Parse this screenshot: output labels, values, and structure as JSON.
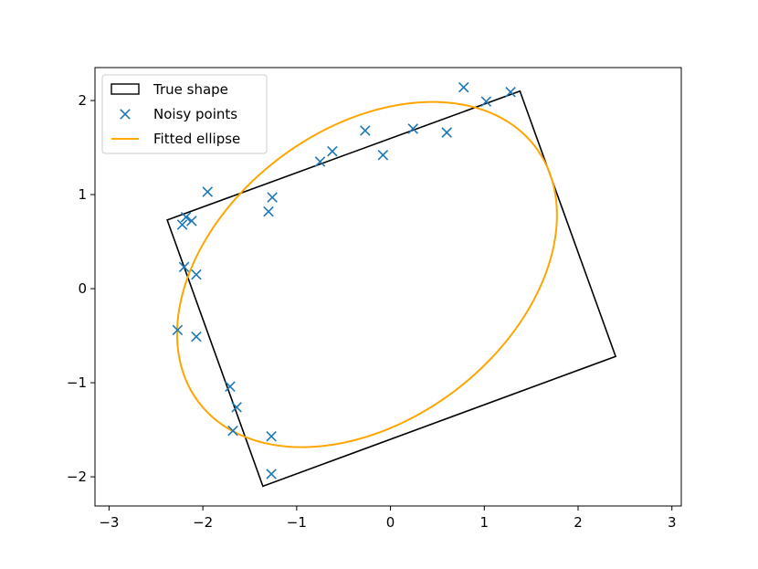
{
  "chart_data": {
    "type": "scatter",
    "title": "",
    "xlabel": "",
    "ylabel": "",
    "xlim": [
      -3.15,
      3.1
    ],
    "ylim": [
      -2.31,
      2.35
    ],
    "grid": false,
    "legend_placement": "top-left",
    "x_ticks": [
      -3,
      -2,
      -1,
      0,
      1,
      2,
      3
    ],
    "y_ticks": [
      -2,
      -1,
      0,
      1,
      2
    ],
    "x_tick_labels": [
      "−3",
      "−2",
      "−1",
      "0",
      "1",
      "2",
      "3"
    ],
    "y_tick_labels": [
      "−2",
      "−1",
      "0",
      "1",
      "2"
    ],
    "series": [
      {
        "name": "True shape",
        "type": "polygon",
        "color": "#000000",
        "points": [
          [
            -2.38,
            0.73
          ],
          [
            1.38,
            2.1
          ],
          [
            2.4,
            -0.72
          ],
          [
            -1.36,
            -2.1
          ]
        ]
      },
      {
        "name": "Noisy points",
        "type": "scatter",
        "marker": "x",
        "color": "#1f77b4",
        "points": [
          [
            0.78,
            2.14
          ],
          [
            1.02,
            1.99
          ],
          [
            1.28,
            2.09
          ],
          [
            -0.27,
            1.68
          ],
          [
            0.24,
            1.7
          ],
          [
            0.6,
            1.66
          ],
          [
            -0.62,
            1.46
          ],
          [
            -0.75,
            1.35
          ],
          [
            -0.08,
            1.42
          ],
          [
            -1.95,
            1.03
          ],
          [
            -1.26,
            0.97
          ],
          [
            -1.3,
            0.82
          ],
          [
            -2.18,
            0.76
          ],
          [
            -2.22,
            0.68
          ],
          [
            -2.12,
            0.72
          ],
          [
            -2.2,
            0.23
          ],
          [
            -2.07,
            0.15
          ],
          [
            -2.27,
            -0.44
          ],
          [
            -2.07,
            -0.51
          ],
          [
            -1.71,
            -1.04
          ],
          [
            -1.64,
            -1.26
          ],
          [
            -1.68,
            -1.51
          ],
          [
            -1.27,
            -1.57
          ],
          [
            -1.27,
            -1.97
          ]
        ]
      },
      {
        "name": "Fitted ellipse",
        "type": "ellipse",
        "color": "#ffa500",
        "center": [
          -0.25,
          0.15
        ],
        "semi_major": 2.25,
        "semi_minor": 1.55,
        "angle_deg": 37
      }
    ],
    "legend": [
      "True shape",
      "Noisy points",
      "Fitted ellipse"
    ]
  }
}
